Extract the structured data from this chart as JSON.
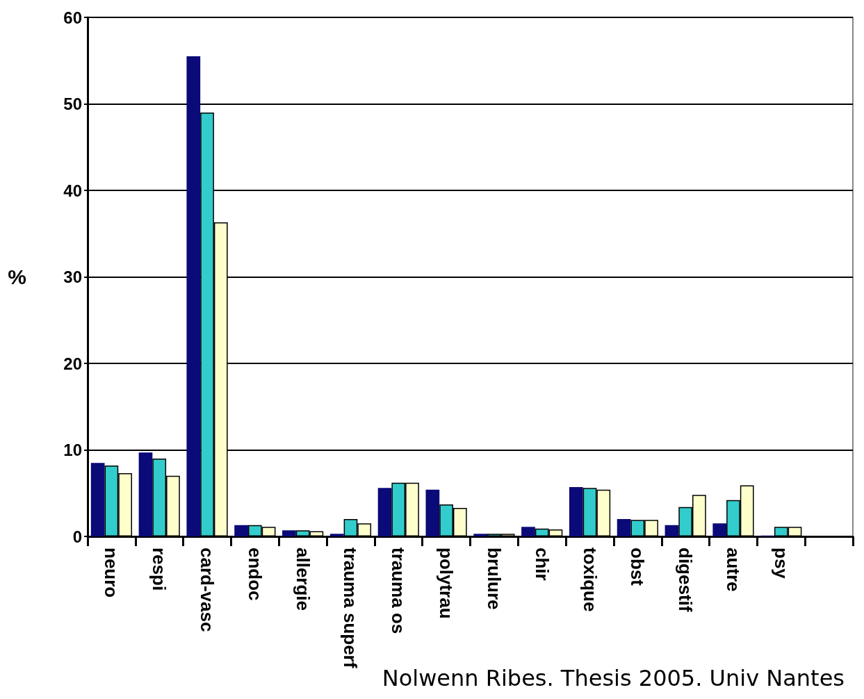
{
  "chart_data": {
    "type": "bar",
    "ylabel": "%",
    "categories": [
      "neuro",
      "respi",
      "card-vasc",
      "endoc",
      "allergie",
      "trauma superf",
      "trauma os",
      "polytrau",
      "brulure",
      "chir",
      "toxique",
      "obst",
      "digestif",
      "autre",
      "psy",
      null
    ],
    "series": [
      {
        "color": "#0a0a78",
        "values": [
          8.5,
          9.7,
          55.5,
          1.3,
          0.7,
          0.3,
          5.6,
          5.4,
          0.3,
          1.1,
          5.7,
          2.0,
          1.3,
          1.5,
          0.1,
          null
        ]
      },
      {
        "color": "#33cccc",
        "values": [
          8.2,
          9.0,
          49.0,
          1.3,
          0.7,
          2.0,
          6.2,
          3.7,
          0.3,
          0.9,
          5.6,
          1.9,
          3.4,
          4.2,
          1.1,
          null
        ]
      },
      {
        "color": "#ffffcc",
        "values": [
          7.3,
          7.0,
          36.3,
          1.1,
          0.6,
          1.5,
          6.2,
          3.3,
          0.3,
          0.8,
          5.4,
          1.9,
          4.8,
          5.9,
          1.1,
          null
        ]
      }
    ],
    "ylim": [
      0,
      60
    ],
    "yticks": [
      0,
      10,
      20,
      30,
      40,
      50,
      60
    ],
    "grid": "y",
    "annotations": [
      "Nolwenn Ribes. Thesis 2005. Univ Nantes"
    ]
  }
}
